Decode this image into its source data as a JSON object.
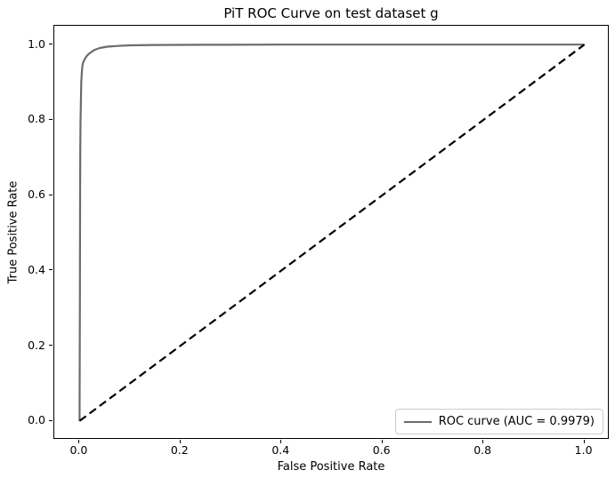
{
  "chart_data": {
    "type": "line",
    "title": "PiT ROC Curve on test dataset g",
    "xlabel": "False Positive Rate",
    "ylabel": "True Positive Rate",
    "xlim": [
      -0.05,
      1.05
    ],
    "ylim": [
      -0.05,
      1.05
    ],
    "xticks": [
      "0.0",
      "0.2",
      "0.4",
      "0.6",
      "0.8",
      "1.0"
    ],
    "yticks": [
      "0.0",
      "0.2",
      "0.4",
      "0.6",
      "0.8",
      "1.0"
    ],
    "grid": false,
    "background_color": "#ffffff",
    "spine_color": "#000000",
    "auc": 0.9979,
    "legend": {
      "location": "lower right",
      "entries": [
        {
          "label": "ROC curve (AUC = 0.9979)",
          "color": "#6b6b6b",
          "style": "solid"
        }
      ]
    },
    "series": [
      {
        "name": "roc-curve-line",
        "label": "ROC curve (AUC = 0.9979)",
        "color": "#6b6b6b",
        "style": "solid",
        "linewidth": 2.2,
        "points": [
          [
            0.0,
            0.0
          ],
          [
            0.0008,
            0.35
          ],
          [
            0.0012,
            0.6
          ],
          [
            0.0015,
            0.72
          ],
          [
            0.002,
            0.8
          ],
          [
            0.0028,
            0.86
          ],
          [
            0.0035,
            0.9
          ],
          [
            0.0045,
            0.925
          ],
          [
            0.0055,
            0.942
          ],
          [
            0.007,
            0.952
          ],
          [
            0.009,
            0.958
          ],
          [
            0.011,
            0.963
          ],
          [
            0.014,
            0.969
          ],
          [
            0.018,
            0.975
          ],
          [
            0.023,
            0.98
          ],
          [
            0.03,
            0.986
          ],
          [
            0.04,
            0.991
          ],
          [
            0.055,
            0.9945
          ],
          [
            0.075,
            0.9965
          ],
          [
            0.1,
            0.998
          ],
          [
            0.15,
            0.999
          ],
          [
            0.25,
            0.9996
          ],
          [
            0.4,
            1.0
          ],
          [
            1.0,
            1.0
          ]
        ]
      },
      {
        "name": "chance-diagonal-line",
        "label": "",
        "color": "#000000",
        "style": "dashed",
        "linewidth": 2.2,
        "points": [
          [
            0.0,
            0.0
          ],
          [
            1.0,
            1.0
          ]
        ]
      }
    ]
  }
}
